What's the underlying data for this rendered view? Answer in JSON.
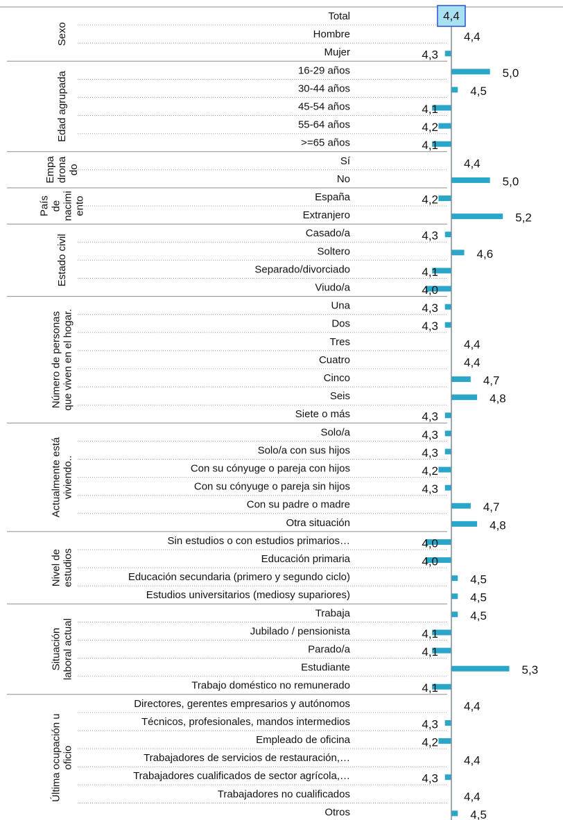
{
  "chart_data": {
    "type": "bar",
    "orientation": "horizontal",
    "reference_value": 4.4,
    "reference_label": "4,4",
    "grid": false,
    "colors": {
      "bar": "#2aa6c8",
      "reference_line": "#7f8c99",
      "reference_box_fill": "#a8e1f2",
      "reference_box_border": "#2a4fd4",
      "group_line": "#8c8c8c",
      "dotted": "#9a9a9a"
    },
    "rows": [
      {
        "group": "Sexo",
        "category": "Total",
        "value": 4.4,
        "label": ""
      },
      {
        "group": "Sexo",
        "category": "Hombre",
        "value": 4.4,
        "label": "4,4"
      },
      {
        "group": "Sexo",
        "category": "Mujer",
        "value": 4.3,
        "label": "4,3"
      },
      {
        "group": "Edad agrupada",
        "category": "16-29 años",
        "value": 5.0,
        "label": "5,0"
      },
      {
        "group": "Edad agrupada",
        "category": "30-44 años",
        "value": 4.5,
        "label": "4,5"
      },
      {
        "group": "Edad agrupada",
        "category": "45-54 años",
        "value": 4.1,
        "label": "4,1"
      },
      {
        "group": "Edad agrupada",
        "category": "55-64 años",
        "value": 4.2,
        "label": "4,2"
      },
      {
        "group": "Edad agrupada",
        "category": ">=65 años",
        "value": 4.1,
        "label": "4,1"
      },
      {
        "group": "Empadronado",
        "category": "Sí",
        "value": 4.4,
        "label": "4,4"
      },
      {
        "group": "Empadronado",
        "category": "No",
        "value": 5.0,
        "label": "5,0"
      },
      {
        "group": "País de nacimiento",
        "category": "España",
        "value": 4.2,
        "label": "4,2"
      },
      {
        "group": "País de nacimiento",
        "category": "Extranjero",
        "value": 5.2,
        "label": "5,2"
      },
      {
        "group": "Estado civil",
        "category": "Casado/a",
        "value": 4.3,
        "label": "4,3"
      },
      {
        "group": "Estado civil",
        "category": "Soltero",
        "value": 4.6,
        "label": "4,6"
      },
      {
        "group": "Estado civil",
        "category": "Separado/divorciado",
        "value": 4.1,
        "label": "4,1"
      },
      {
        "group": "Estado civil",
        "category": "Viudo/a",
        "value": 4.0,
        "label": "4,0"
      },
      {
        "group": "Número de personas que viven en el hogar.",
        "category": "Una",
        "value": 4.3,
        "label": "4,3"
      },
      {
        "group": "Número de personas que viven en el hogar.",
        "category": "Dos",
        "value": 4.3,
        "label": "4,3"
      },
      {
        "group": "Número de personas que viven en el hogar.",
        "category": "Tres",
        "value": 4.4,
        "label": "4,4"
      },
      {
        "group": "Número de personas que viven en el hogar.",
        "category": "Cuatro",
        "value": 4.4,
        "label": "4,4"
      },
      {
        "group": "Número de personas que viven en el hogar.",
        "category": "Cinco",
        "value": 4.7,
        "label": "4,7"
      },
      {
        "group": "Número de personas que viven en el hogar.",
        "category": "Seis",
        "value": 4.8,
        "label": "4,8"
      },
      {
        "group": "Número de personas que viven en el hogar.",
        "category": "Siete o más",
        "value": 4.3,
        "label": "4,3"
      },
      {
        "group": "Actualmente está viviendo..",
        "category": "Solo/a",
        "value": 4.3,
        "label": "4,3"
      },
      {
        "group": "Actualmente está viviendo..",
        "category": "Solo/a con sus hijos",
        "value": 4.3,
        "label": "4,3"
      },
      {
        "group": "Actualmente está viviendo..",
        "category": "Con su cónyuge o pareja con hijos",
        "value": 4.2,
        "label": "4,2"
      },
      {
        "group": "Actualmente está viviendo..",
        "category": "Con su cónyuge o pareja sin  hijos",
        "value": 4.3,
        "label": "4,3"
      },
      {
        "group": "Actualmente está viviendo..",
        "category": "Con su padre o madre",
        "value": 4.7,
        "label": "4,7"
      },
      {
        "group": "Actualmente está viviendo..",
        "category": "Otra situación",
        "value": 4.8,
        "label": "4,8"
      },
      {
        "group": "Nivel de estudios",
        "category": "Sin estudios o con estudios primarios…",
        "value": 4.0,
        "label": "4,0"
      },
      {
        "group": "Nivel de estudios",
        "category": "Educación primaria",
        "value": 4.0,
        "label": "4,0"
      },
      {
        "group": "Nivel de estudios",
        "category": "Educación secundaria (primero y segundo ciclo)",
        "value": 4.5,
        "label": "4,5"
      },
      {
        "group": "Nivel de estudios",
        "category": "Estudios universitarios (mediosy supariores)",
        "value": 4.5,
        "label": "4,5"
      },
      {
        "group": "Situación laboral actual",
        "category": "Trabaja",
        "value": 4.5,
        "label": "4,5"
      },
      {
        "group": "Situación laboral actual",
        "category": "Jubilado / pensionista",
        "value": 4.1,
        "label": "4,1"
      },
      {
        "group": "Situación laboral actual",
        "category": "Parado/a",
        "value": 4.1,
        "label": "4,1"
      },
      {
        "group": "Situación laboral actual",
        "category": "Estudiante",
        "value": 5.3,
        "label": "5,3"
      },
      {
        "group": "Situación laboral actual",
        "category": "Trabajo doméstico no remunerado",
        "value": 4.1,
        "label": "4,1"
      },
      {
        "group": "Última ocupación u oficio",
        "category": "Directores, gerentes empresarios y autónomos",
        "value": 4.4,
        "label": "4,4"
      },
      {
        "group": "Última ocupación u oficio",
        "category": "Técnicos, profesionales, mandos intermedios",
        "value": 4.3,
        "label": "4,3"
      },
      {
        "group": "Última ocupación u oficio",
        "category": "Empleado de oficina",
        "value": 4.2,
        "label": "4,2"
      },
      {
        "group": "Última ocupación u oficio",
        "category": "Trabajadores de servicios de restauración,…",
        "value": 4.4,
        "label": "4,4"
      },
      {
        "group": "Última ocupación u oficio",
        "category": "Trabajadores cualificados de sector agrícola,…",
        "value": 4.3,
        "label": "4,3"
      },
      {
        "group": "Última ocupación u oficio",
        "category": "Trabajadores no cualificados",
        "value": 4.4,
        "label": "4,4"
      },
      {
        "group": "Última ocupación u oficio",
        "category": "Otros",
        "value": 4.5,
        "label": "4,5"
      }
    ],
    "groups": [
      {
        "name": "Sexo",
        "lines": [
          "Sexo"
        ]
      },
      {
        "name": "Edad agrupada",
        "lines": [
          "Edad agrupada"
        ]
      },
      {
        "name": "Empadronado",
        "lines": [
          "Empa",
          "drona",
          "do"
        ]
      },
      {
        "name": "País de nacimiento",
        "lines": [
          "País",
          "de",
          "nacimi",
          "ento"
        ]
      },
      {
        "name": "Estado civil",
        "lines": [
          "Estado civil"
        ]
      },
      {
        "name": "Número de personas que viven en el hogar.",
        "lines": [
          "Número de personas",
          "que viven en el hogar."
        ]
      },
      {
        "name": "Actualmente está viviendo..",
        "lines": [
          "Actualmente está",
          "viviendo.."
        ]
      },
      {
        "name": "Nivel de estudios",
        "lines": [
          "Nivel de",
          "estudios"
        ]
      },
      {
        "name": "Situación laboral actual",
        "lines": [
          "Situación",
          "laboral actual"
        ]
      },
      {
        "name": "Última ocupación u oficio",
        "lines": [
          "Última ocupación u",
          "oficio"
        ]
      }
    ]
  }
}
